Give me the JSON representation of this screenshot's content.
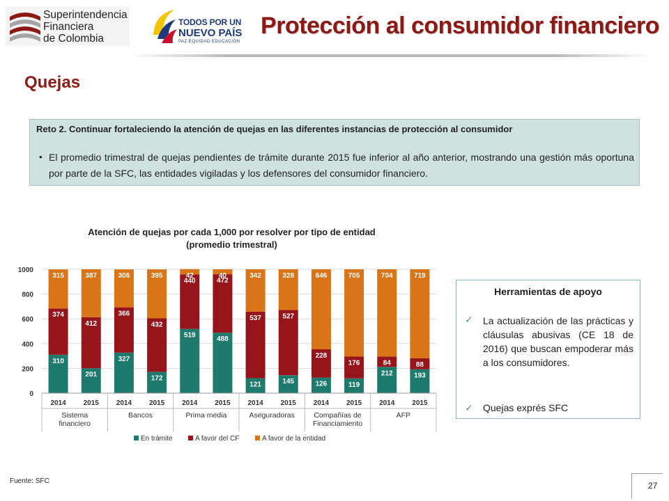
{
  "header": {
    "org_line1": "Superintendencia",
    "org_line2": "Financiera",
    "org_line3": "de Colombia",
    "gov_line1": "TODOS POR UN",
    "gov_line2": "NUEVO PAÍS",
    "gov_line3": "PAZ  EQUIDAD  EDUCACIÓN",
    "title": "Protección al consumidor financiero"
  },
  "section_title": "Quejas",
  "reto": {
    "title": "Reto 2. Continuar fortaleciendo la atención de quejas en las diferentes instancias de protección al consumidor",
    "bullet": "•",
    "text": "El promedio trimestral de quejas pendientes de trámite durante 2015 fue inferior al año anterior, mostrando una gestión más oportuna por parte de la SFC, las entidades vigiladas y los defensores del consumidor financiero."
  },
  "chart_title_line1": "Atención de quejas por cada 1,000 por resolver por tipo de entidad",
  "chart_title_line2": "(promedio trimestral)",
  "chart_data": {
    "type": "bar",
    "stacked": true,
    "ylim": [
      0,
      1000
    ],
    "yticks": [
      "0",
      "200",
      "400",
      "600",
      "800",
      "1000"
    ],
    "categories": [
      "2014",
      "2015",
      "2014",
      "2015",
      "2014",
      "2015",
      "2014",
      "2015",
      "2014",
      "2015",
      "2014",
      "2015"
    ],
    "groups": [
      {
        "lines": [
          "Sistema",
          "financiero"
        ]
      },
      {
        "lines": [
          "Bancos"
        ]
      },
      {
        "lines": [
          "Prima media"
        ]
      },
      {
        "lines": [
          "Aseguradoras"
        ]
      },
      {
        "lines": [
          "Compañías de",
          "Financiamiento"
        ]
      },
      {
        "lines": [
          "AFP"
        ]
      }
    ],
    "series": [
      {
        "name": "En trámite",
        "color": "#1f7a6e",
        "values": [
          310,
          201,
          327,
          172,
          519,
          488,
          121,
          145,
          126,
          119,
          212,
          193
        ]
      },
      {
        "name": "A favor del CF",
        "color": "#96151a",
        "values": [
          374,
          412,
          366,
          432,
          440,
          472,
          537,
          527,
          228,
          176,
          84,
          88
        ]
      },
      {
        "name": "A favor de la entidad",
        "color": "#d97418",
        "values": [
          315,
          387,
          306,
          395,
          42,
          40,
          342,
          328,
          646,
          705,
          704,
          719
        ]
      }
    ],
    "legend_position": "bottom"
  },
  "tools": {
    "title": "Herramientas  de apoyo",
    "check": "✓",
    "item1": "La actualización de las prácticas y cláusulas abusivas (CE 18 de 2016) que buscan empoderar más a los consumidores.",
    "item2": "Quejas exprés SFC"
  },
  "fuente": "Fuente: SFC",
  "page_number": "27"
}
